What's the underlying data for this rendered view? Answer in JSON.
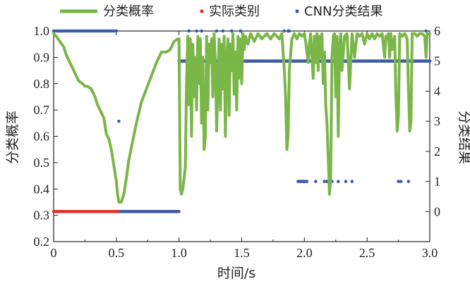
{
  "chart_data": {
    "type": "line",
    "xlabel": "时间/s",
    "ylabel_left": "分类概率",
    "ylabel_right": "分类结果",
    "xlim": [
      0,
      3.0
    ],
    "ylim_left": [
      0.2,
      1.0
    ],
    "ylim_right": [
      -1,
      6
    ],
    "xticks": [
      "0",
      "0.5",
      "1.0",
      "1.5",
      "2.0",
      "2.5",
      "3.0"
    ],
    "yticks_left": [
      "0.2",
      "0.3",
      "0.4",
      "0.5",
      "0.6",
      "0.7",
      "0.8",
      "0.9",
      "1.0"
    ],
    "yticks_right": [
      "0",
      "1",
      "2",
      "3",
      "4",
      "5",
      "6"
    ],
    "legend_placement": "top",
    "colors": {
      "probability": "#7ab648",
      "actual": "#e0302a",
      "cnn": "#3b5ea8"
    },
    "series": [
      {
        "name": "分类概率",
        "axis": "left",
        "style": "line",
        "points": [
          [
            0.0,
            0.99
          ],
          [
            0.02,
            0.98
          ],
          [
            0.05,
            0.96
          ],
          [
            0.08,
            0.94
          ],
          [
            0.1,
            0.91
          ],
          [
            0.13,
            0.88
          ],
          [
            0.15,
            0.86
          ],
          [
            0.18,
            0.83
          ],
          [
            0.2,
            0.81
          ],
          [
            0.23,
            0.8
          ],
          [
            0.25,
            0.79
          ],
          [
            0.27,
            0.79
          ],
          [
            0.3,
            0.78
          ],
          [
            0.33,
            0.75
          ],
          [
            0.35,
            0.72
          ],
          [
            0.38,
            0.69
          ],
          [
            0.4,
            0.67
          ],
          [
            0.42,
            0.61
          ],
          [
            0.44,
            0.59
          ],
          [
            0.46,
            0.55
          ],
          [
            0.48,
            0.49
          ],
          [
            0.5,
            0.43
          ],
          [
            0.51,
            0.38
          ],
          [
            0.52,
            0.35
          ],
          [
            0.54,
            0.35
          ],
          [
            0.56,
            0.38
          ],
          [
            0.58,
            0.44
          ],
          [
            0.6,
            0.51
          ],
          [
            0.63,
            0.58
          ],
          [
            0.66,
            0.65
          ],
          [
            0.7,
            0.73
          ],
          [
            0.74,
            0.78
          ],
          [
            0.78,
            0.83
          ],
          [
            0.82,
            0.88
          ],
          [
            0.86,
            0.92
          ],
          [
            0.9,
            0.92
          ],
          [
            0.93,
            0.93
          ],
          [
            0.96,
            0.96
          ],
          [
            0.99,
            0.97
          ],
          [
            1.0,
            0.97
          ],
          [
            1.01,
            0.4
          ],
          [
            1.02,
            0.38
          ],
          [
            1.03,
            0.4
          ],
          [
            1.05,
            0.48
          ],
          [
            1.06,
            0.8
          ],
          [
            1.07,
            0.98
          ],
          [
            1.08,
            0.72
          ],
          [
            1.09,
            0.97
          ],
          [
            1.1,
            0.6
          ],
          [
            1.11,
            0.95
          ],
          [
            1.12,
            0.75
          ],
          [
            1.13,
            0.9
          ],
          [
            1.14,
            0.7
          ],
          [
            1.15,
            0.98
          ],
          [
            1.16,
            0.8
          ],
          [
            1.17,
            0.97
          ],
          [
            1.18,
            0.65
          ],
          [
            1.19,
            0.9
          ],
          [
            1.2,
            0.55
          ],
          [
            1.21,
            0.6
          ],
          [
            1.22,
            0.98
          ],
          [
            1.23,
            0.7
          ],
          [
            1.24,
            0.95
          ],
          [
            1.25,
            0.88
          ],
          [
            1.26,
            0.97
          ],
          [
            1.27,
            0.75
          ],
          [
            1.28,
            0.99
          ],
          [
            1.29,
            0.88
          ],
          [
            1.3,
            0.62
          ],
          [
            1.31,
            0.82
          ],
          [
            1.32,
            0.97
          ],
          [
            1.33,
            0.7
          ],
          [
            1.34,
            0.95
          ],
          [
            1.35,
            0.78
          ],
          [
            1.36,
            0.98
          ],
          [
            1.37,
            0.6
          ],
          [
            1.38,
            0.9
          ],
          [
            1.39,
            0.97
          ],
          [
            1.4,
            0.68
          ],
          [
            1.41,
            0.95
          ],
          [
            1.42,
            0.85
          ],
          [
            1.43,
            0.99
          ],
          [
            1.44,
            0.76
          ],
          [
            1.45,
            0.92
          ],
          [
            1.46,
            0.7
          ],
          [
            1.47,
            0.98
          ],
          [
            1.48,
            0.82
          ],
          [
            1.49,
            0.97
          ],
          [
            1.5,
            0.8
          ],
          [
            1.51,
            0.99
          ],
          [
            1.52,
            0.93
          ],
          [
            1.53,
            0.98
          ],
          [
            1.55,
            0.95
          ],
          [
            1.57,
            0.99
          ],
          [
            1.6,
            0.96
          ],
          [
            1.63,
            0.99
          ],
          [
            1.66,
            0.97
          ],
          [
            1.7,
            0.99
          ],
          [
            1.73,
            0.97
          ],
          [
            1.76,
            0.99
          ],
          [
            1.8,
            0.97
          ],
          [
            1.82,
            0.99
          ],
          [
            1.84,
            0.85
          ],
          [
            1.85,
            0.75
          ],
          [
            1.86,
            0.55
          ],
          [
            1.87,
            0.6
          ],
          [
            1.88,
            0.85
          ],
          [
            1.9,
            0.97
          ],
          [
            1.92,
            0.99
          ],
          [
            1.94,
            0.97
          ],
          [
            1.96,
            0.99
          ],
          [
            1.98,
            0.98
          ],
          [
            2.0,
            0.99
          ],
          [
            2.01,
            0.96
          ],
          [
            2.02,
            0.92
          ],
          [
            2.03,
            0.88
          ],
          [
            2.04,
            0.95
          ],
          [
            2.05,
            0.99
          ],
          [
            2.06,
            0.9
          ],
          [
            2.07,
            0.82
          ],
          [
            2.08,
            0.98
          ],
          [
            2.09,
            0.88
          ],
          [
            2.1,
            0.99
          ],
          [
            2.11,
            0.85
          ],
          [
            2.12,
            0.98
          ],
          [
            2.13,
            0.9
          ],
          [
            2.14,
            0.99
          ],
          [
            2.15,
            0.8
          ],
          [
            2.16,
            0.92
          ],
          [
            2.17,
            0.72
          ],
          [
            2.18,
            0.65
          ],
          [
            2.19,
            0.52
          ],
          [
            2.2,
            0.38
          ],
          [
            2.21,
            0.45
          ],
          [
            2.22,
            0.9
          ],
          [
            2.23,
            0.98
          ],
          [
            2.24,
            0.99
          ],
          [
            2.25,
            0.75
          ],
          [
            2.26,
            0.98
          ],
          [
            2.27,
            0.6
          ],
          [
            2.28,
            0.94
          ],
          [
            2.29,
            0.99
          ],
          [
            2.3,
            0.85
          ],
          [
            2.32,
            0.98
          ],
          [
            2.34,
            0.99
          ],
          [
            2.36,
            0.78
          ],
          [
            2.38,
            0.99
          ],
          [
            2.4,
            0.9
          ],
          [
            2.42,
            0.99
          ],
          [
            2.44,
            0.98
          ],
          [
            2.46,
            0.99
          ],
          [
            2.48,
            0.95
          ],
          [
            2.5,
            0.99
          ],
          [
            2.52,
            0.97
          ],
          [
            2.54,
            0.99
          ],
          [
            2.56,
            0.97
          ],
          [
            2.58,
            0.99
          ],
          [
            2.6,
            0.98
          ],
          [
            2.62,
            0.99
          ],
          [
            2.64,
            0.9
          ],
          [
            2.65,
            0.98
          ],
          [
            2.66,
            0.97
          ],
          [
            2.67,
            0.99
          ],
          [
            2.68,
            0.9
          ],
          [
            2.69,
            0.99
          ],
          [
            2.7,
            0.93
          ],
          [
            2.72,
            0.98
          ],
          [
            2.73,
            0.75
          ],
          [
            2.74,
            0.62
          ],
          [
            2.75,
            0.68
          ],
          [
            2.76,
            0.99
          ],
          [
            2.78,
            0.98
          ],
          [
            2.8,
            0.99
          ],
          [
            2.82,
            0.97
          ],
          [
            2.83,
            0.78
          ],
          [
            2.84,
            0.62
          ],
          [
            2.85,
            0.66
          ],
          [
            2.86,
            0.99
          ],
          [
            2.88,
            0.99
          ],
          [
            2.9,
            0.98
          ],
          [
            2.92,
            0.99
          ],
          [
            2.94,
            0.99
          ],
          [
            2.96,
            0.98
          ],
          [
            2.97,
            0.9
          ],
          [
            2.98,
            0.99
          ],
          [
            3.0,
            0.99
          ]
        ]
      },
      {
        "name": "实际类别",
        "axis": "right",
        "style": "dots",
        "segments": [
          {
            "x_start": 0.0,
            "x_end": 1.0,
            "y": 0
          },
          {
            "x_start": 1.0,
            "x_end": 3.0,
            "y": 5
          }
        ]
      },
      {
        "name": "CNN分类结果",
        "axis": "right",
        "style": "dots",
        "segments": [
          {
            "x_start": 0.0,
            "x_end": 0.5,
            "y": 6
          },
          {
            "x_start": 0.52,
            "x_end": 0.52,
            "y": 3
          },
          {
            "x_start": 0.53,
            "x_end": 1.0,
            "y": 0
          },
          {
            "x_start": 1.0,
            "x_end": 3.0,
            "y": 5
          }
        ],
        "points": [
          [
            1.08,
            6
          ],
          [
            1.14,
            6
          ],
          [
            1.18,
            6
          ],
          [
            1.3,
            6
          ],
          [
            1.35,
            6
          ],
          [
            1.42,
            6
          ],
          [
            1.49,
            6
          ],
          [
            1.84,
            6
          ],
          [
            1.87,
            6
          ],
          [
            1.88,
            6
          ],
          [
            1.95,
            1
          ],
          [
            1.96,
            1
          ],
          [
            1.97,
            1
          ],
          [
            1.98,
            1
          ],
          [
            1.99,
            1
          ],
          [
            2.0,
            1
          ],
          [
            2.01,
            1
          ],
          [
            2.02,
            1
          ],
          [
            2.09,
            1
          ],
          [
            2.16,
            1
          ],
          [
            2.18,
            1
          ],
          [
            2.2,
            1
          ],
          [
            2.22,
            1
          ],
          [
            2.27,
            1
          ],
          [
            2.33,
            1
          ],
          [
            2.38,
            1
          ],
          [
            2.75,
            1
          ],
          [
            2.77,
            1
          ],
          [
            2.83,
            1
          ],
          [
            2.97,
            6
          ]
        ]
      }
    ]
  }
}
